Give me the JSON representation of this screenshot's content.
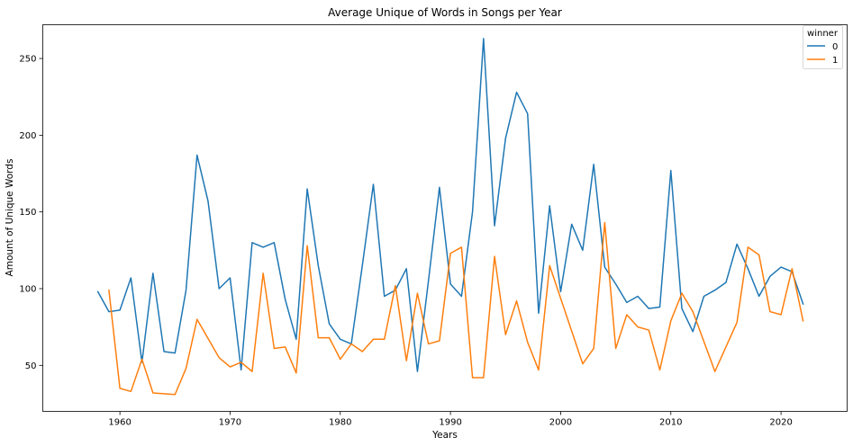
{
  "chart_data": {
    "type": "line",
    "title": "Average Unique of Words in Songs per Year",
    "xlabel": "Years",
    "ylabel": "Amount of Unique Words",
    "xlim": [
      1953,
      2026
    ],
    "ylim": [
      20,
      272
    ],
    "xticks": [
      1960,
      1970,
      1980,
      1990,
      2000,
      2010,
      2020
    ],
    "yticks": [
      50,
      100,
      150,
      200,
      250
    ],
    "grid": false,
    "legend": {
      "title": "winner",
      "placement": "top-right"
    },
    "series": [
      {
        "name": "0",
        "color": "#1f77b4",
        "x": [
          1958,
          1959,
          1960,
          1961,
          1962,
          1963,
          1964,
          1965,
          1966,
          1967,
          1968,
          1969,
          1970,
          1971,
          1972,
          1973,
          1974,
          1975,
          1976,
          1977,
          1978,
          1979,
          1980,
          1981,
          1982,
          1983,
          1984,
          1985,
          1986,
          1987,
          1988,
          1989,
          1990,
          1991,
          1992,
          1993,
          1994,
          1995,
          1996,
          1997,
          1998,
          1999,
          2000,
          2001,
          2002,
          2003,
          2004,
          2005,
          2006,
          2007,
          2008,
          2009,
          2010,
          2011,
          2012,
          2013,
          2014,
          2015,
          2016,
          2017,
          2018,
          2019,
          2020,
          2021,
          2022
        ],
        "y": [
          98,
          85,
          86,
          107,
          52,
          110,
          59,
          58,
          99,
          187,
          157,
          100,
          107,
          47,
          130,
          127,
          130,
          93,
          67,
          165,
          115,
          77,
          67,
          64,
          115,
          168,
          95,
          99,
          113,
          46,
          105,
          166,
          103,
          95,
          150,
          263,
          141,
          198,
          228,
          214,
          84,
          154,
          98,
          142,
          125,
          181,
          114,
          103,
          91,
          95,
          87,
          88,
          177,
          87,
          72,
          95,
          99,
          104,
          129,
          113,
          95,
          108,
          114,
          111,
          90
        ]
      },
      {
        "name": "1",
        "color": "#ff7f0e",
        "x": [
          1959,
          1960,
          1961,
          1962,
          1963,
          1965,
          1966,
          1967,
          1969,
          1970,
          1971,
          1972,
          1973,
          1974,
          1975,
          1976,
          1977,
          1978,
          1979,
          1980,
          1981,
          1982,
          1983,
          1984,
          1985,
          1986,
          1987,
          1988,
          1989,
          1990,
          1991,
          1992,
          1993,
          1994,
          1995,
          1996,
          1997,
          1998,
          1999,
          2002,
          2003,
          2004,
          2005,
          2006,
          2007,
          2008,
          2009,
          2010,
          2011,
          2012,
          2014,
          2016,
          2017,
          2018,
          2019,
          2020,
          2021,
          2022
        ],
        "y": [
          99,
          35,
          33,
          54,
          32,
          31,
          48,
          80,
          55,
          49,
          52,
          46,
          110,
          61,
          62,
          45,
          128,
          68,
          68,
          54,
          64,
          59,
          67,
          67,
          102,
          53,
          97,
          64,
          66,
          123,
          127,
          42,
          42,
          121,
          70,
          92,
          65,
          47,
          115,
          51,
          61,
          143,
          61,
          83,
          75,
          73,
          47,
          79,
          97,
          85,
          46,
          78,
          127,
          122,
          85,
          83,
          113,
          79
        ]
      }
    ]
  }
}
